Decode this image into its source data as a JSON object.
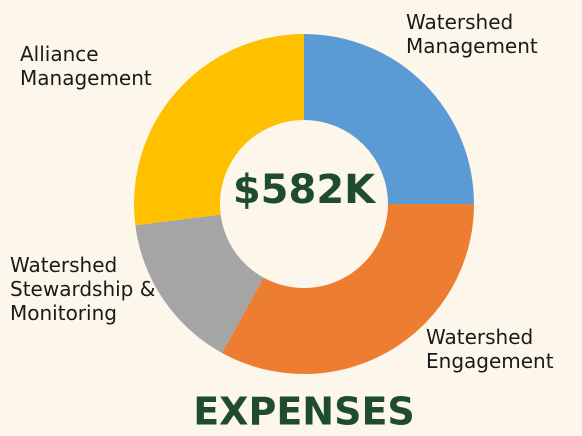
{
  "chart_data": {
    "type": "donut",
    "title": "EXPENSES",
    "center_label": "$582K",
    "categories": [
      "Watershed Management",
      "Watershed Engagement",
      "Watershed Stewardship & Monitoring",
      "Alliance Management"
    ],
    "values": [
      25,
      33,
      15,
      27
    ],
    "colors": [
      "#5b9bd5",
      "#ed7d31",
      "#a5a5a5",
      "#ffc000"
    ]
  }
}
